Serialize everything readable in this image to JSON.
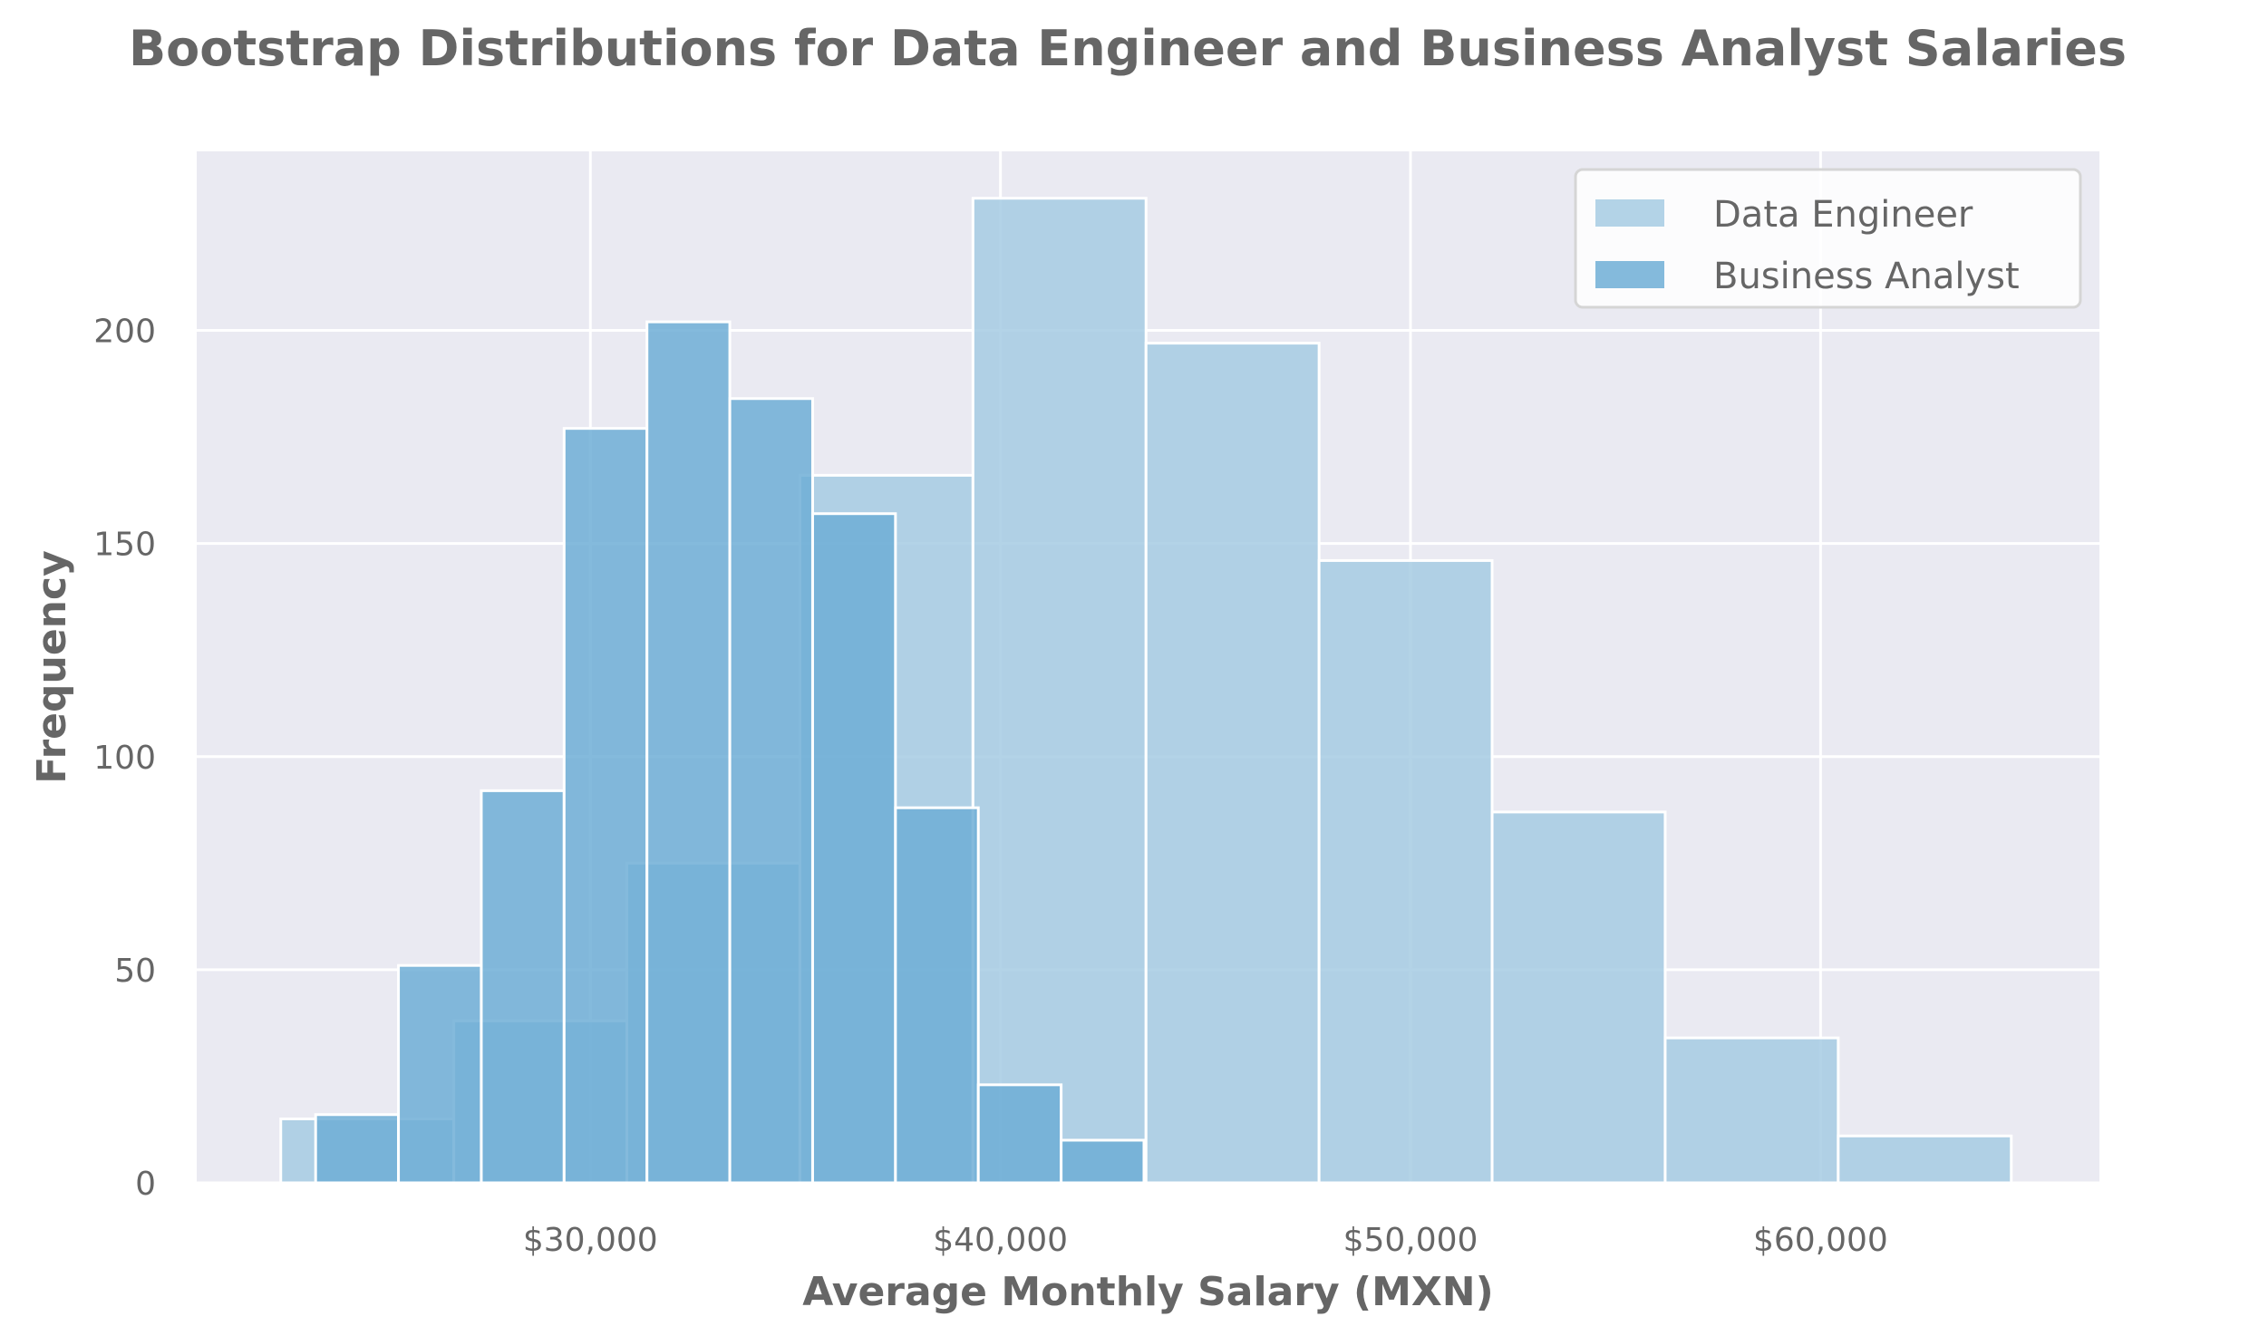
{
  "chart_data": {
    "type": "bar",
    "title": "Bootstrap Distributions for Data Engineer and Business Analyst Salaries",
    "xlabel": "Average Monthly Salary (MXN)",
    "ylabel": "Frequency",
    "xlim": [
      20400,
      66800
    ],
    "ylim": [
      0,
      242
    ],
    "x_ticks": [
      30000,
      40000,
      50000,
      60000
    ],
    "x_tick_labels": [
      "$30,000",
      "$40,000",
      "$50,000",
      "$60,000"
    ],
    "y_ticks": [
      0,
      50,
      100,
      150,
      200
    ],
    "y_tick_labels": [
      "0",
      "50",
      "100",
      "150",
      "200"
    ],
    "grid": true,
    "legend_position": "top-right",
    "series": [
      {
        "name": "Data Engineer",
        "color": "#a6cbe3",
        "bins": [
          {
            "x0": 22450,
            "x1": 26670,
            "value": 15
          },
          {
            "x0": 26670,
            "x1": 30890,
            "value": 38
          },
          {
            "x0": 30890,
            "x1": 35110,
            "value": 75
          },
          {
            "x0": 35110,
            "x1": 39330,
            "value": 166
          },
          {
            "x0": 39330,
            "x1": 43550,
            "value": 231
          },
          {
            "x0": 43550,
            "x1": 47770,
            "value": 197
          },
          {
            "x0": 47770,
            "x1": 51990,
            "value": 146
          },
          {
            "x0": 51990,
            "x1": 56210,
            "value": 87
          },
          {
            "x0": 56210,
            "x1": 60430,
            "value": 34
          },
          {
            "x0": 60430,
            "x1": 64650,
            "value": 11
          }
        ]
      },
      {
        "name": "Business Analyst",
        "color": "#6eaed6",
        "bins": [
          {
            "x0": 23300,
            "x1": 25320,
            "value": 16
          },
          {
            "x0": 25320,
            "x1": 27340,
            "value": 51
          },
          {
            "x0": 27340,
            "x1": 29360,
            "value": 92
          },
          {
            "x0": 29360,
            "x1": 31380,
            "value": 177
          },
          {
            "x0": 31380,
            "x1": 33400,
            "value": 202
          },
          {
            "x0": 33400,
            "x1": 35420,
            "value": 184
          },
          {
            "x0": 35420,
            "x1": 37440,
            "value": 157
          },
          {
            "x0": 37440,
            "x1": 39460,
            "value": 88
          },
          {
            "x0": 39460,
            "x1": 41480,
            "value": 23
          },
          {
            "x0": 41480,
            "x1": 43500,
            "value": 10
          }
        ]
      }
    ]
  }
}
